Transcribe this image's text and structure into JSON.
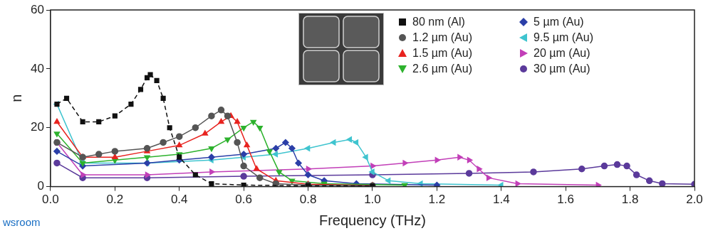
{
  "chart_data": {
    "type": "line",
    "x_label": "Frequency (THz)",
    "y_label": "n",
    "xlim": [
      0,
      2
    ],
    "xticks": [
      {
        "value": 0,
        "label": "0.0"
      },
      0.2,
      0.4,
      0.6,
      0.8,
      {
        "value": 1,
        "label": "1.0"
      },
      1.2,
      1.4,
      1.6,
      1.8,
      {
        "value": 2,
        "label": "2.0"
      }
    ],
    "ylim": [
      0,
      60
    ],
    "yticks": [
      0,
      20,
      40,
      60
    ],
    "grid": false,
    "legend": "top right",
    "annotations": [
      "wsroom"
    ],
    "series": [
      {
        "name": "80 nm (Al)",
        "color": "#111111",
        "marker": "square",
        "line_style": "dashed",
        "x": [
          0.02,
          0.05,
          0.1,
          0.15,
          0.2,
          0.25,
          0.28,
          0.3,
          0.31,
          0.33,
          0.35,
          0.37,
          0.4,
          0.45,
          0.5,
          0.6,
          0.8,
          1.0
        ],
        "values": [
          28,
          30,
          22,
          22,
          24,
          28,
          33,
          37,
          38,
          36,
          30,
          20,
          10,
          4,
          1,
          0.5,
          0.3,
          0.2
        ]
      },
      {
        "name": "1.2 µm (Au)",
        "color": "#555555",
        "marker": "circle",
        "line_style": "solid",
        "x": [
          0.02,
          0.1,
          0.15,
          0.2,
          0.3,
          0.35,
          0.4,
          0.45,
          0.5,
          0.53,
          0.55,
          0.58,
          0.6,
          0.65,
          0.7,
          0.8,
          1.0
        ],
        "values": [
          15,
          10,
          11,
          12,
          13,
          15,
          17,
          20,
          24,
          26,
          24,
          15,
          7,
          3,
          1,
          0.5,
          0.3
        ]
      },
      {
        "name": "1.5 µm (Au)",
        "color": "#e8231f",
        "marker": "triangle",
        "line_style": "solid",
        "x": [
          0.02,
          0.1,
          0.2,
          0.3,
          0.4,
          0.48,
          0.53,
          0.56,
          0.58,
          0.61,
          0.64,
          0.7,
          0.8,
          1.0
        ],
        "values": [
          22,
          10,
          10,
          12,
          14,
          18,
          22,
          24,
          22,
          14,
          6,
          2,
          0.8,
          0.4
        ]
      },
      {
        "name": "2.6 µm (Au)",
        "color": "#2db22d",
        "marker": "triangle-down",
        "line_style": "solid",
        "x": [
          0.02,
          0.1,
          0.2,
          0.3,
          0.4,
          0.5,
          0.55,
          0.6,
          0.63,
          0.65,
          0.68,
          0.71,
          0.75,
          0.85,
          1.1
        ],
        "values": [
          18,
          8,
          9,
          10,
          11,
          13,
          16,
          20,
          22,
          20,
          12,
          5,
          2,
          1,
          0.5
        ]
      },
      {
        "name": "5 µm (Au)",
        "color": "#2b3fa8",
        "marker": "diamond",
        "line_style": "solid",
        "x": [
          0.02,
          0.1,
          0.3,
          0.4,
          0.5,
          0.6,
          0.7,
          0.73,
          0.75,
          0.77,
          0.8,
          0.85,
          0.95,
          1.2
        ],
        "values": [
          12,
          7,
          8,
          9,
          10,
          11,
          13,
          15,
          13,
          8,
          4,
          2,
          1,
          0.5
        ]
      },
      {
        "name": "9.5 µm (Au)",
        "color": "#3fc4cf",
        "marker": "triangle-left",
        "line_style": "solid",
        "x": [
          0.02,
          0.1,
          0.3,
          0.5,
          0.6,
          0.7,
          0.8,
          0.88,
          0.93,
          0.95,
          0.98,
          1.0,
          1.05,
          1.15,
          1.4
        ],
        "values": [
          28,
          8,
          8,
          9,
          10,
          11,
          13,
          15,
          16,
          15,
          10,
          5,
          2,
          1,
          0.5
        ]
      },
      {
        "name": "20 µm (Au)",
        "color": "#c23fb8",
        "marker": "triangle-right",
        "line_style": "solid",
        "x": [
          0.02,
          0.1,
          0.3,
          0.5,
          0.8,
          1.0,
          1.1,
          1.2,
          1.27,
          1.3,
          1.33,
          1.36,
          1.45,
          1.7
        ],
        "values": [
          15,
          4,
          4,
          5,
          6,
          7,
          8,
          9,
          10,
          9,
          6,
          3,
          1,
          0.5
        ]
      },
      {
        "name": "30 µm (Au)",
        "color": "#5b3a9b",
        "marker": "circle",
        "line_style": "solid",
        "x": [
          0.02,
          0.1,
          0.3,
          0.6,
          1.0,
          1.3,
          1.5,
          1.65,
          1.72,
          1.76,
          1.79,
          1.82,
          1.86,
          1.9,
          2.0
        ],
        "values": [
          8,
          3,
          3,
          3.5,
          4,
          4.5,
          5,
          6,
          7,
          7.5,
          7,
          4,
          2,
          1,
          0.8
        ]
      }
    ]
  }
}
